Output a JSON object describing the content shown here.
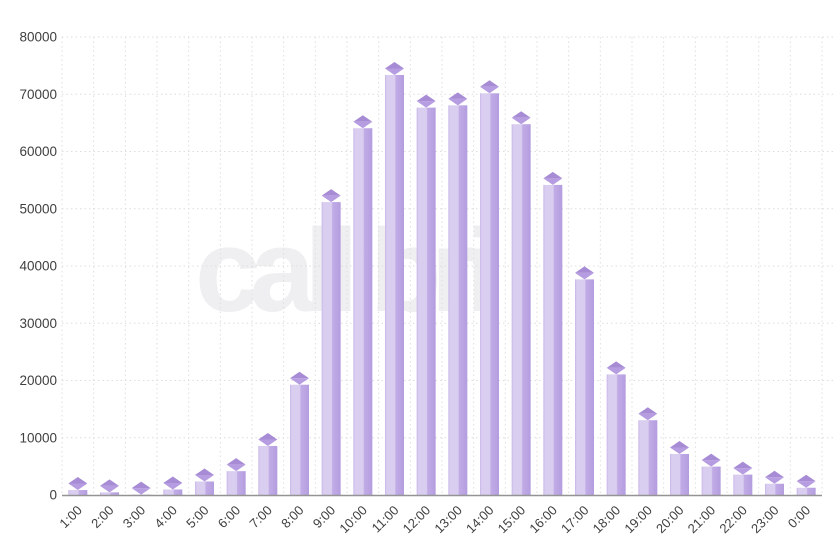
{
  "watermark": {
    "text": "callibri"
  },
  "colors": {
    "background": "#ffffff",
    "bar_edge_left": "#c8b5e8",
    "bar_face_light": "#d9cdf0",
    "bar_side_right": "#b49ddf",
    "bar_cap_top": "#a78cd5",
    "bar_cap_bottom": "#b69ce0",
    "gridline": "#dedede",
    "axis_line": "#949494",
    "tick_label": "#3f3f3f",
    "watermark": "#efeff1"
  },
  "chart_data": {
    "type": "bar",
    "style": "3d-column",
    "title": "",
    "xlabel": "",
    "ylabel": "",
    "categories": [
      "1:00",
      "2:00",
      "3:00",
      "4:00",
      "5:00",
      "6:00",
      "7:00",
      "8:00",
      "9:00",
      "10:00",
      "11:00",
      "12:00",
      "13:00",
      "14:00",
      "15:00",
      "16:00",
      "17:00",
      "18:00",
      "19:00",
      "20:00",
      "21:00",
      "22:00",
      "23:00",
      "0:00"
    ],
    "values": [
      2000,
      1600,
      1200,
      2100,
      3500,
      5300,
      9700,
      20400,
      52300,
      65200,
      74500,
      68800,
      69200,
      71300,
      65900,
      55300,
      38800,
      22200,
      14200,
      8300,
      6100,
      4700,
      3100,
      2400
    ],
    "ylim": [
      0,
      80000
    ],
    "y_tick_step": 10000,
    "y_tick_labels": [
      "0",
      "10000",
      "20000",
      "30000",
      "40000",
      "50000",
      "60000",
      "70000",
      "80000"
    ],
    "grid": true,
    "grid_style": "dotted",
    "legend": false,
    "x_label_rotation": -45
  }
}
